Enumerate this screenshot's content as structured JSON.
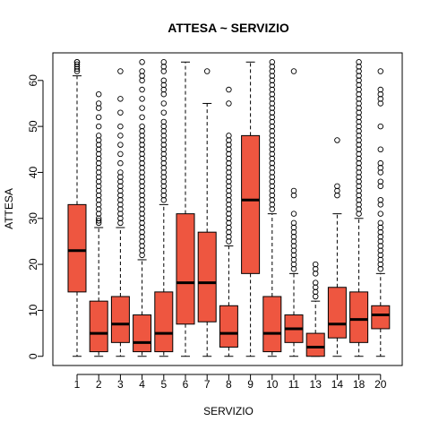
{
  "chart_data": {
    "type": "boxplot",
    "title": "ATTESA ~ SERVIZIO",
    "xlabel": "SERVIZIO",
    "ylabel": "ATTESA",
    "ylim": [
      -2,
      66
    ],
    "yticks": [
      0,
      10,
      20,
      30,
      40,
      50,
      60
    ],
    "box_color": "#ee5640",
    "categories": [
      "1",
      "2",
      "3",
      "4",
      "5",
      "6",
      "7",
      "8",
      "9",
      "10",
      "11",
      "13",
      "14",
      "18",
      "20"
    ],
    "boxes": [
      {
        "category": "1",
        "lower_whisker": 0,
        "q1": 14,
        "median": 23,
        "q3": 33,
        "upper_whisker": 61,
        "outliers": [
          62,
          62.5,
          63,
          63.5,
          64,
          64
        ]
      },
      {
        "category": "2",
        "lower_whisker": 0,
        "q1": 1,
        "median": 5,
        "q3": 12,
        "upper_whisker": 28,
        "outliers": [
          29,
          29.5,
          30,
          31,
          32,
          33,
          34,
          35,
          36,
          37,
          38,
          39,
          40,
          41,
          42,
          43,
          44,
          45,
          46,
          47,
          48,
          50,
          52,
          54,
          55,
          57
        ]
      },
      {
        "category": "3",
        "lower_whisker": 0,
        "q1": 3,
        "median": 7,
        "q3": 13,
        "upper_whisker": 28,
        "outliers": [
          29,
          30,
          31,
          32,
          33,
          34,
          35,
          36,
          37,
          38,
          39,
          40,
          42,
          44,
          46,
          48,
          50,
          53,
          56,
          62
        ]
      },
      {
        "category": "4",
        "lower_whisker": 0,
        "q1": 1,
        "median": 3,
        "q3": 9,
        "upper_whisker": 21,
        "outliers": [
          22,
          23,
          24,
          25,
          26,
          27,
          28,
          29,
          30,
          31,
          32,
          33,
          34,
          35,
          36,
          37,
          38,
          39,
          40,
          41,
          42,
          43,
          44,
          45,
          46,
          47,
          48,
          49,
          50,
          52,
          54,
          56,
          58,
          60,
          61,
          62,
          64
        ]
      },
      {
        "category": "5",
        "lower_whisker": 0,
        "q1": 1,
        "median": 5,
        "q3": 14,
        "upper_whisker": 33,
        "outliers": [
          34,
          35,
          36,
          37,
          38,
          39,
          40,
          41,
          42,
          43,
          44,
          45,
          46,
          47,
          48,
          49,
          50,
          51,
          53,
          55,
          57,
          58,
          59,
          60,
          62,
          63,
          64
        ]
      },
      {
        "category": "6",
        "lower_whisker": 0,
        "q1": 7,
        "median": 16,
        "q3": 31,
        "upper_whisker": 64,
        "outliers": []
      },
      {
        "category": "7",
        "lower_whisker": 0,
        "q1": 7.5,
        "median": 16,
        "q3": 27,
        "upper_whisker": 55,
        "outliers": [
          62
        ]
      },
      {
        "category": "8",
        "lower_whisker": 0,
        "q1": 2,
        "median": 5,
        "q3": 11,
        "upper_whisker": 24,
        "outliers": [
          25,
          26,
          27,
          28,
          29,
          30,
          31,
          32,
          33,
          34,
          35,
          36,
          37,
          38,
          39,
          40,
          41,
          42,
          43,
          44,
          45,
          46,
          47,
          48,
          55,
          58
        ]
      },
      {
        "category": "9",
        "lower_whisker": 0,
        "q1": 18,
        "median": 34,
        "q3": 48,
        "upper_whisker": 64,
        "outliers": []
      },
      {
        "category": "10",
        "lower_whisker": 0,
        "q1": 1,
        "median": 5,
        "q3": 13,
        "upper_whisker": 31,
        "outliers": [
          32,
          33,
          34,
          35,
          36,
          37,
          38,
          39,
          40,
          41,
          42,
          43,
          44,
          45,
          46,
          47,
          48,
          49,
          50,
          51,
          52,
          53,
          54,
          55,
          56,
          57,
          58,
          59,
          60,
          61,
          62,
          63,
          64
        ]
      },
      {
        "category": "11",
        "lower_whisker": 0,
        "q1": 3,
        "median": 6,
        "q3": 9,
        "upper_whisker": 18,
        "outliers": [
          19,
          20,
          21,
          22,
          23,
          24,
          25,
          26,
          27,
          28,
          29,
          31,
          35,
          36,
          62
        ]
      },
      {
        "category": "13",
        "lower_whisker": 0,
        "q1": 0,
        "median": 2,
        "q3": 5,
        "upper_whisker": 12,
        "outliers": [
          13,
          14,
          15,
          16,
          18,
          19,
          20
        ]
      },
      {
        "category": "14",
        "lower_whisker": 0,
        "q1": 4,
        "median": 7,
        "q3": 15,
        "upper_whisker": 31,
        "outliers": [
          35,
          36,
          37,
          47
        ]
      },
      {
        "category": "18",
        "lower_whisker": 0,
        "q1": 3,
        "median": 8,
        "q3": 14,
        "upper_whisker": 30,
        "outliers": [
          31,
          32,
          33,
          34,
          35,
          36,
          37,
          38,
          39,
          40,
          41,
          42,
          43,
          44,
          45,
          46,
          47,
          48,
          49,
          50,
          51,
          52,
          53,
          54,
          55,
          56,
          57,
          58,
          59,
          60,
          61,
          62,
          63,
          64
        ]
      },
      {
        "category": "20",
        "lower_whisker": 0,
        "q1": 6,
        "median": 9,
        "q3": 11,
        "upper_whisker": 18,
        "outliers": [
          19,
          20,
          21,
          22,
          23,
          24,
          25,
          26,
          27,
          28,
          29,
          31,
          33,
          34,
          37,
          38,
          40,
          41,
          42,
          45,
          50,
          55,
          56,
          57,
          58,
          62
        ]
      }
    ]
  }
}
